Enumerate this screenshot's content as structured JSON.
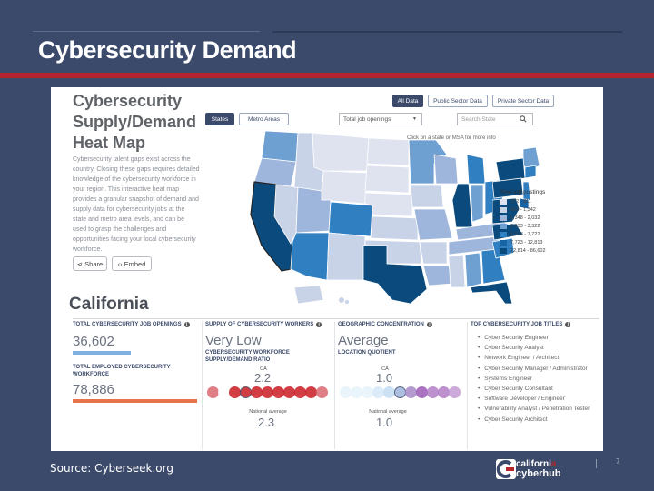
{
  "slide": {
    "title": "Cybersecurity Demand",
    "source": "Source:  Cyberseek.org",
    "page_number": "7",
    "logo": {
      "line1": "californi",
      "line1_accent": "a",
      "line2": "cyberhub"
    }
  },
  "heatmap": {
    "title_line1": "Cybersecurity",
    "title_line2": "Supply/Demand",
    "title_line3": "Heat Map",
    "description": "Cybersecurity talent gaps exist across the country. Closing these gaps requires detailed knowledge of the cybersecurity workforce in your region. This interactive heat map provides a granular snapshot of demand and supply data for cybersecurity jobs at the state and metro area levels, and can be used to grasp the challenges and opportunities facing your local cybersecurity workforce.",
    "share_label": "Share",
    "embed_label": "Embed",
    "filters": {
      "all": "All Data",
      "public": "Public Sector Data",
      "private": "Private Sector Data"
    },
    "tabs": {
      "states": "States",
      "metro": "Metro Areas"
    },
    "select_value": "Total job openings",
    "search_placeholder": "Search State",
    "hint": "Click on a state or MSA for more info",
    "legend": {
      "title": "Total job postings",
      "items": [
        {
          "label": "172 - 811",
          "color": "#dfe3f0"
        },
        {
          "label": "812 - 1,342",
          "color": "#c8d3e8"
        },
        {
          "label": "1,348 - 2,032",
          "color": "#9fb6dc"
        },
        {
          "label": "2,033 - 3,322",
          "color": "#6fa0d2"
        },
        {
          "label": "3,323 - 7,722",
          "color": "#2f7fc1"
        },
        {
          "label": "7,723 - 12,813",
          "color": "#1763a3"
        },
        {
          "label": "12,814 - 86,602",
          "color": "#0b4a7c"
        }
      ]
    }
  },
  "state": {
    "name": "California",
    "openings": {
      "head": "TOTAL CYBERSECURITY JOB OPENINGS",
      "value": "36,602"
    },
    "employed": {
      "head_line1": "TOTAL EMPLOYED CYBERSECURITY",
      "head_line2": "WORKFORCE",
      "value": "78,886"
    },
    "supply": {
      "head": "SUPPLY OF CYBERSECURITY WORKERS",
      "value": "Very Low",
      "sub_line1": "CYBERSECURITY WORKFORCE",
      "sub_line2": "SUPPLY/DEMAND RATIO",
      "ca_label": "CA",
      "ca_value": "2.2",
      "nat_label": "National average",
      "nat_value": "2.3"
    },
    "concentration": {
      "head": "GEOGRAPHIC CONCENTRATION",
      "value": "Average",
      "sub": "LOCATION QUOTIENT",
      "ca_label": "CA",
      "ca_value": "1.0",
      "nat_label": "National average",
      "nat_value": "1.0"
    },
    "titles": {
      "head": "TOP CYBERSECURITY JOB TITLES",
      "items": [
        "Cyber Security Engineer",
        "Cyber Security Analyst",
        "Network Engineer / Architect",
        "Cyber Security Manager / Administrator",
        "Systems Engineer",
        "Cyber Security Consultant",
        "Software Developer / Engineer",
        "Vulnerability Analyst / Penetration Tester",
        "Cyber Security Architect"
      ]
    }
  },
  "colors": {
    "accent_red": "#b5262c",
    "navy": "#3b4a6b",
    "bar_blue": "#7fb0e0",
    "bar_orange": "#e8734a"
  }
}
